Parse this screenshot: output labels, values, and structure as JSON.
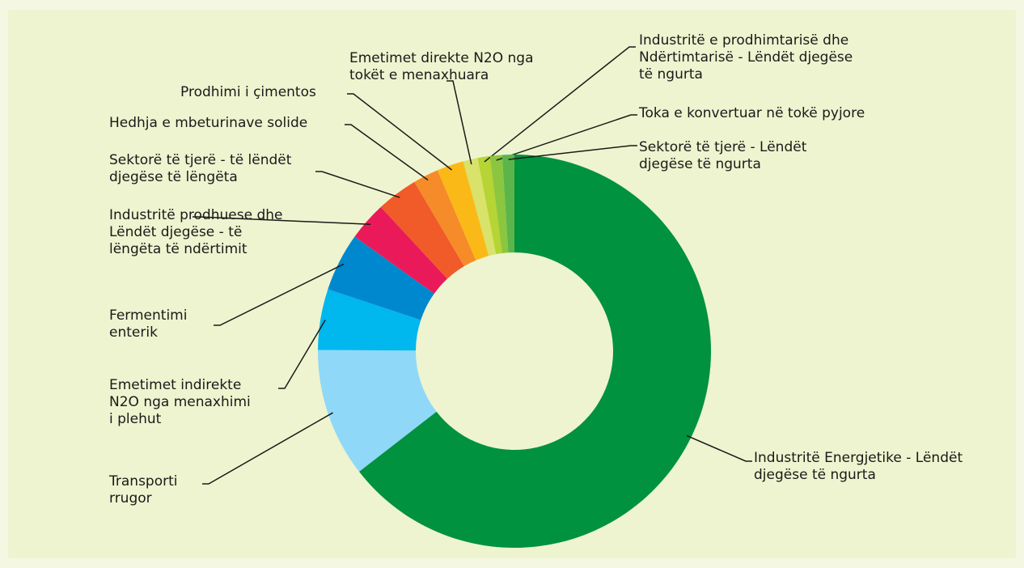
{
  "chart_data": {
    "type": "donut",
    "categories": [
      "Industritë Energjetike - Lëndët djegëse të ngurta",
      "Transporti rrugor",
      "Emetimet indirekte N2O nga menaxhimi i plehut",
      "Fermentimi enterik",
      "Industritë prodhuese dhe Lëndët djegëse - të lëngëta të ndërtimit",
      "Sektorë të tjerë - të lëndët djegëse të lëngëta",
      "Hedhja e mbeturinave solide",
      "Prodhimi i çimentos",
      "Emetimet direkte N2O nga tokët e menaxhuara",
      "Industritë e prodhimtarisë dhe Ndërtimtarisë - Lëndët djegëse të ngurta",
      "Toka e konvertuar në tokë pyjore",
      "Sektorë të tjerë - Lëndët djegëse të ngurta"
    ],
    "values": [
      64.5,
      10.6,
      5.0,
      4.8,
      3.2,
      3.4,
      2.1,
      2.2,
      1.2,
      1.0,
      1.0,
      1.0
    ],
    "colors": [
      "#00923f",
      "#8fd8f8",
      "#00b7ee",
      "#0088cf",
      "#ea1a5a",
      "#f15a29",
      "#f68b2a",
      "#fbb917",
      "#d9e26a",
      "#b6d433",
      "#8cc63f",
      "#5cb54b"
    ]
  }
}
